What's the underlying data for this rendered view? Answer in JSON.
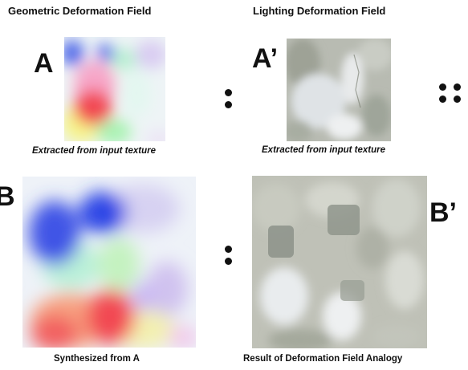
{
  "headings": {
    "geometric": "Geometric Deformation Field",
    "lighting": "Lighting Deformation Field"
  },
  "labels": {
    "a": "A",
    "a_prime": "A’",
    "b": "B",
    "b_prime": "B’"
  },
  "captions": {
    "a": "Extracted from input texture",
    "a_prime": "Extracted from input texture",
    "b": "Synthesized from A",
    "b_prime": "Result of Deformation Field Analogy"
  },
  "colors": {
    "field_red": "#f24a52",
    "field_blue": "#2f46e6",
    "field_green": "#bff5b0",
    "field_violet": "#c3a8ef",
    "stone_light": "#e9ecee",
    "stone_mid": "#b8bbb2",
    "stone_dark": "#8f958c"
  }
}
